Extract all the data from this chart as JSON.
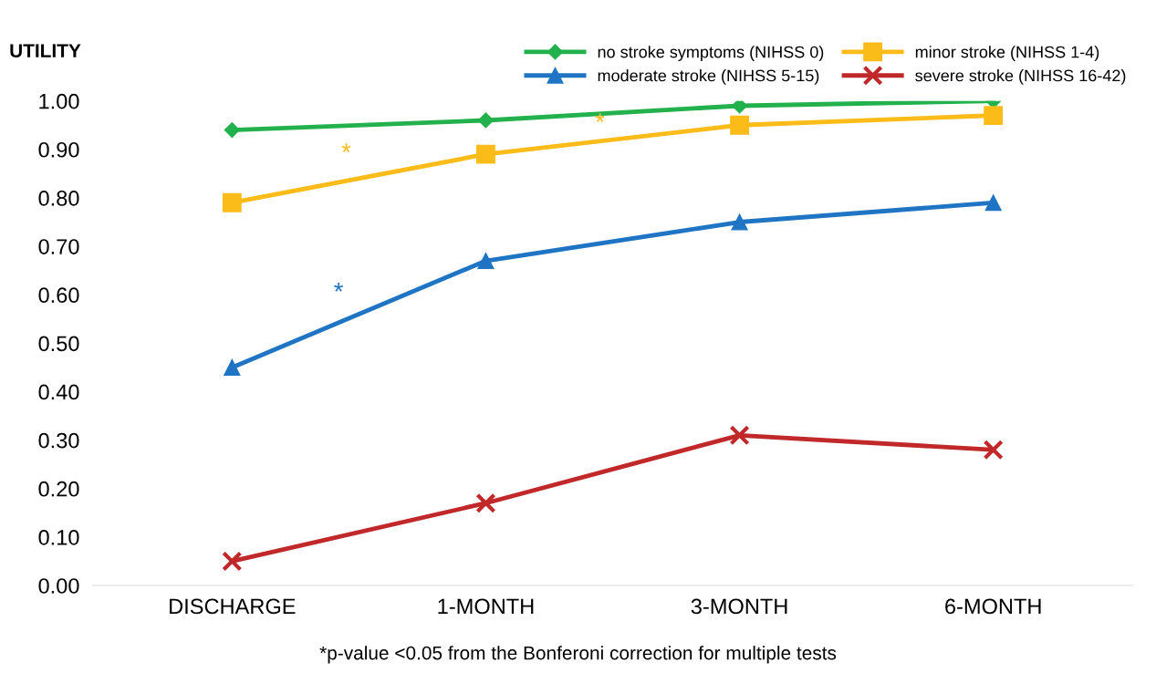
{
  "chart_data": {
    "type": "line",
    "ylabel": "UTILITY",
    "categories": [
      "DISCHARGE",
      "1-MONTH",
      "3-MONTH",
      "6-MONTH"
    ],
    "series": [
      {
        "name": "no stroke symptoms (NIHSS 0)",
        "color": "#22b14c",
        "marker": "diamond",
        "values": [
          0.94,
          0.96,
          0.99,
          1.0
        ]
      },
      {
        "name": "minor stroke (NIHSS 1-4)",
        "color": "#fbbc19",
        "marker": "square",
        "values": [
          0.79,
          0.89,
          0.95,
          0.97
        ]
      },
      {
        "name": "moderate stroke (NIHSS 5-15)",
        "color": "#1f74c4",
        "marker": "triangle",
        "values": [
          0.45,
          0.67,
          0.75,
          0.79
        ]
      },
      {
        "name": "severe stroke (NIHSS 16-42)",
        "color": "#c0282a",
        "marker": "cross",
        "values": [
          0.05,
          0.17,
          0.31,
          0.28
        ]
      }
    ],
    "ylim": [
      0,
      1.0
    ],
    "yticks": [
      {
        "value": 0,
        "label": "0.00"
      },
      {
        "value": 0.1,
        "label": "0.10"
      },
      {
        "value": 0.2,
        "label": "0.20"
      },
      {
        "value": 0.3,
        "label": "0.30"
      },
      {
        "value": 0.4,
        "label": "0.40"
      },
      {
        "value": 0.5,
        "label": "0.50"
      },
      {
        "value": 0.6,
        "label": "0.60"
      },
      {
        "value": 0.7,
        "label": "0.70"
      },
      {
        "value": 0.8,
        "label": "0.80"
      },
      {
        "value": 0.9,
        "label": "0.90"
      },
      {
        "value": 1.0,
        "label": "1.00"
      }
    ],
    "grid": false,
    "legend": "top",
    "line_style": "solid",
    "annotations": [
      "*",
      "*",
      "*",
      "*p-value <0.05 from the Bonferoni correction for multiple tests"
    ]
  }
}
